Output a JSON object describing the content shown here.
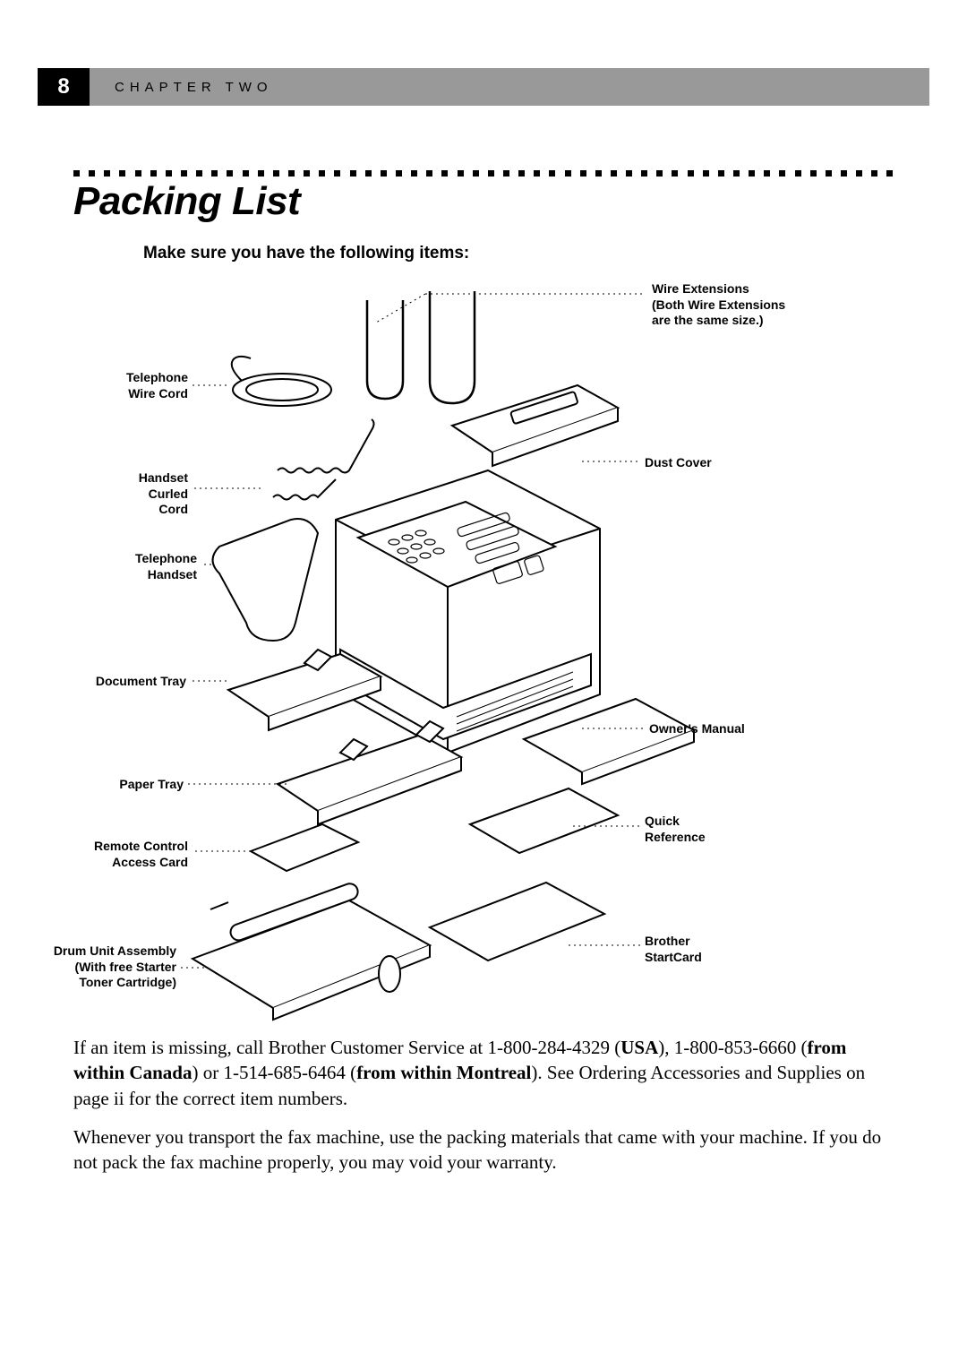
{
  "header": {
    "page_number": "8",
    "chapter_label": "CHAPTER TWO",
    "bar_color": "#999999",
    "page_num_bg": "#000000",
    "page_num_color": "#ffffff"
  },
  "title": "Packing List",
  "subtitle": "Make sure you have the following items:",
  "rule": {
    "dot_color": "#000000",
    "dot_count": 54,
    "dot_size": 7
  },
  "callouts": {
    "wire_extensions_l1": "Wire Extensions",
    "wire_extensions_l2": "(Both Wire Extensions",
    "wire_extensions_l3": "are the same size.)",
    "telephone_wire_l1": "Telephone",
    "telephone_wire_l2": "Wire Cord",
    "handset_curled_l1": "Handset",
    "handset_curled_l2": "Curled",
    "handset_curled_l3": "Cord",
    "dust_cover": "Dust Cover",
    "telephone_handset_l1": "Telephone",
    "telephone_handset_l2": "Handset",
    "document_tray": "Document Tray",
    "owners_manual": "Owner's Manual",
    "paper_tray": "Paper Tray",
    "quick_ref_l1": "Quick",
    "quick_ref_l2": "Reference",
    "remote_card_l1": "Remote Control",
    "remote_card_l2": "Access Card",
    "drum_l1": "Drum Unit Assembly",
    "drum_l2": "(With free Starter",
    "drum_l3": "Toner Cartridge)",
    "brother_card_l1": "Brother",
    "brother_card_l2": "StartCard"
  },
  "body": {
    "p1_a": "If an item is missing, call Brother Customer Service at 1-800-284-4329 (",
    "p1_b": "USA",
    "p1_c": "), 1-800-853-6660 (",
    "p1_d": "from within Canada",
    "p1_e": ") or 1-514-685-6464 (",
    "p1_f": "from within Montreal",
    "p1_g": "). See Ordering Accessories and Supplies on page ii for the correct item numbers.",
    "p2": "Whenever you transport the fax machine, use the packing materials that came with your machine. If you do not pack the fax machine properly, you may void your warranty."
  },
  "typography": {
    "title_fontsize": 44,
    "subtitle_fontsize": 19,
    "callout_fontsize": 14,
    "body_fontsize": 21
  },
  "colors": {
    "text": "#000000",
    "background": "#ffffff"
  }
}
